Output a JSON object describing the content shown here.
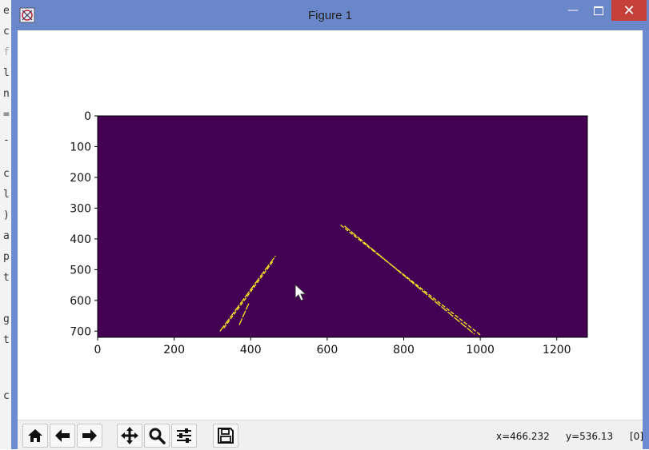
{
  "background_editor": {
    "visible_chars": [
      "e",
      "c",
      "f",
      "l",
      "n",
      "=",
      "-",
      "c",
      "l",
      ")",
      "a",
      "p",
      "t",
      "g",
      "t",
      "c"
    ]
  },
  "window": {
    "title": "Figure 1",
    "controls": {
      "minimize_icon": "minimize-icon",
      "maximize_icon": "maximize-icon",
      "close_icon": "close-icon",
      "close_color": "#c6403a"
    }
  },
  "chart_data": {
    "type": "heatmap",
    "description_colors": {
      "background": "#440154",
      "edge": "#fde725"
    },
    "xlim": [
      0,
      1280
    ],
    "ylim": [
      720,
      0
    ],
    "x_ticks": [
      0,
      200,
      400,
      600,
      800,
      1000,
      1200
    ],
    "y_ticks": [
      0,
      100,
      200,
      300,
      400,
      500,
      600,
      700
    ],
    "x_tick_labels": [
      "0",
      "200",
      "400",
      "600",
      "800",
      "1000",
      "1200"
    ],
    "y_tick_labels": [
      "0",
      "100",
      "200",
      "300",
      "400",
      "500",
      "600",
      "700"
    ],
    "edges": [
      {
        "name": "",
        "points": [
          [
            320,
            700
          ],
          [
            465,
            455
          ]
        ]
      },
      {
        "name": "",
        "points": [
          [
            330,
            690
          ],
          [
            460,
            470
          ]
        ]
      },
      {
        "name": "",
        "points": [
          [
            370,
            680
          ],
          [
            395,
            610
          ]
        ]
      },
      {
        "name": "",
        "points": [
          [
            635,
            355
          ],
          [
            1000,
            712
          ]
        ]
      },
      {
        "name": "",
        "points": [
          [
            645,
            358
          ],
          [
            985,
            710
          ]
        ]
      }
    ]
  },
  "toolbar": {
    "buttons": [
      {
        "name": "home-button",
        "icon": "home-icon"
      },
      {
        "name": "back-button",
        "icon": "arrow-left-icon"
      },
      {
        "name": "forward-button",
        "icon": "arrow-right-icon"
      },
      {
        "name": "pan-button",
        "icon": "move-icon"
      },
      {
        "name": "zoom-button",
        "icon": "search-icon"
      },
      {
        "name": "configure-subplots-button",
        "icon": "sliders-icon"
      },
      {
        "name": "save-button",
        "icon": "floppy-icon"
      }
    ],
    "x_readout": "x=466.232",
    "y_readout": "y=536.13",
    "value_readout": "[0]"
  }
}
